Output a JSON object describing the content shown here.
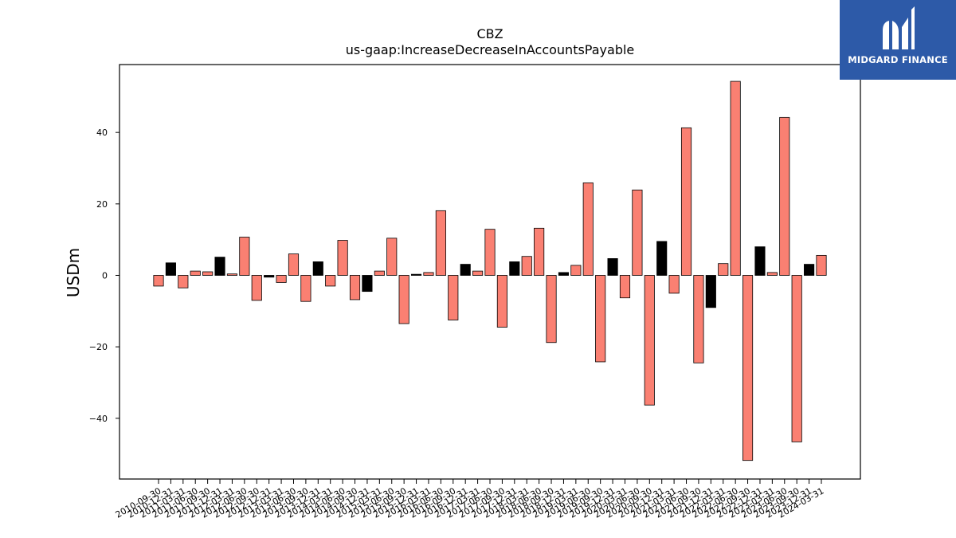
{
  "chart_data": {
    "type": "bar",
    "title": "CBZ",
    "subtitle": "us-gaap:IncreaseDecreaseInAccountsPayable",
    "xlabel": "",
    "ylabel": "USDm",
    "ylim": [
      -57,
      59
    ],
    "yticks": [
      -40,
      -20,
      0,
      20,
      40
    ],
    "grid": false,
    "legend": "none",
    "colors": {
      "positive_yoy": "#fa8072",
      "black_bar": "#000000"
    },
    "categories": [
      "2010-09-30",
      "2010-12-31",
      "2011-03-31",
      "2011-06-30",
      "2011-09-30",
      "2011-12-31",
      "2012-03-31",
      "2012-06-30",
      "2012-09-30",
      "2012-12-31",
      "2013-03-31",
      "2013-06-30",
      "2013-09-30",
      "2013-12-31",
      "2014-03-31",
      "2014-06-30",
      "2014-09-30",
      "2014-12-31",
      "2015-03-31",
      "2015-06-30",
      "2015-09-30",
      "2015-12-31",
      "2016-03-31",
      "2016-06-30",
      "2016-09-30",
      "2016-12-31",
      "2017-03-31",
      "2017-06-30",
      "2017-09-30",
      "2017-12-31",
      "2018-03-31",
      "2018-06-30",
      "2018-09-30",
      "2018-12-31",
      "2019-03-31",
      "2019-06-30",
      "2019-09-30",
      "2019-12-31",
      "2020-03-31",
      "2020-06-30",
      "2020-09-30",
      "2020-12-31",
      "2021-03-31",
      "2021-06-30",
      "2021-09-30",
      "2021-12-31",
      "2022-03-31",
      "2022-06-30",
      "2022-09-30",
      "2022-12-31",
      "2023-03-31",
      "2023-06-30",
      "2023-09-30",
      "2023-12-31",
      "2024-03-31"
    ],
    "values": [
      -3.0,
      3.5,
      -3.5,
      1.2,
      1.0,
      5.1,
      0.4,
      10.7,
      -7.0,
      -0.5,
      -2.0,
      6.0,
      -7.3,
      3.8,
      -3.0,
      9.8,
      -6.8,
      -4.5,
      1.2,
      10.4,
      -13.5,
      0.3,
      0.8,
      18.1,
      -12.5,
      3.1,
      1.2,
      12.9,
      -14.5,
      3.8,
      5.3,
      13.2,
      -18.8,
      0.8,
      2.8,
      25.9,
      -24.2,
      4.7,
      -6.3,
      23.9,
      -36.3,
      9.5,
      -5.0,
      41.3,
      -24.5,
      -9.0,
      3.3,
      54.3,
      -51.8,
      8.0,
      0.8,
      44.2,
      -46.6,
      3.1,
      5.6
    ],
    "bar_colors": [
      "#fa8072",
      "#000000",
      "#fa8072",
      "#fa8072",
      "#fa8072",
      "#000000",
      "#fa8072",
      "#fa8072",
      "#fa8072",
      "#000000",
      "#fa8072",
      "#fa8072",
      "#fa8072",
      "#000000",
      "#fa8072",
      "#fa8072",
      "#fa8072",
      "#000000",
      "#fa8072",
      "#fa8072",
      "#fa8072",
      "#000000",
      "#fa8072",
      "#fa8072",
      "#fa8072",
      "#000000",
      "#fa8072",
      "#fa8072",
      "#fa8072",
      "#000000",
      "#fa8072",
      "#fa8072",
      "#fa8072",
      "#000000",
      "#fa8072",
      "#fa8072",
      "#fa8072",
      "#000000",
      "#fa8072",
      "#fa8072",
      "#fa8072",
      "#000000",
      "#fa8072",
      "#fa8072",
      "#fa8072",
      "#000000",
      "#fa8072",
      "#fa8072",
      "#fa8072",
      "#000000",
      "#fa8072",
      "#fa8072",
      "#fa8072",
      "#000000",
      "#fa8072"
    ]
  },
  "logo": {
    "text": "MIDGARD FINANCE",
    "background": "#2d5aa8"
  }
}
